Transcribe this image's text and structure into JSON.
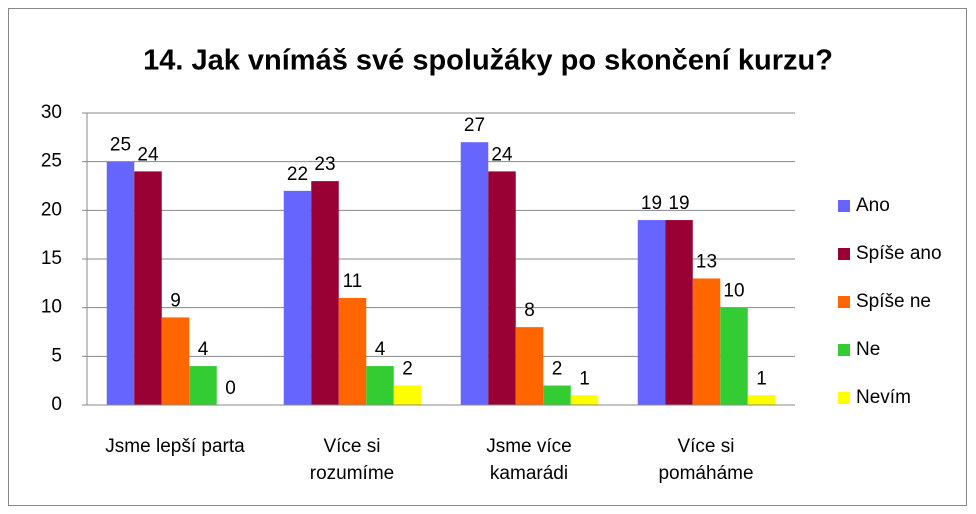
{
  "chart_data": {
    "type": "bar",
    "title": "14. Jak vnímáš své spolužáky po skončení kurzu?",
    "categories": [
      "Jsme lepší parta",
      "Více si\nrozumíme",
      "Jsme více\nkamarádi",
      "Více si\npomáháme"
    ],
    "series": [
      {
        "name": "Ano",
        "color": "#6666ff",
        "values": [
          25,
          22,
          27,
          19
        ]
      },
      {
        "name": "Spíše ano",
        "color": "#990033",
        "values": [
          24,
          23,
          24,
          19
        ]
      },
      {
        "name": "Spíše ne",
        "color": "#ff6600",
        "values": [
          9,
          11,
          8,
          13
        ]
      },
      {
        "name": "Ne",
        "color": "#33cc33",
        "values": [
          4,
          4,
          2,
          10
        ]
      },
      {
        "name": "Nevím",
        "color": "#ffff00",
        "values": [
          0,
          2,
          1,
          1
        ]
      }
    ],
    "ylim": [
      0,
      30
    ],
    "yticks": [
      0,
      5,
      10,
      15,
      20,
      25,
      30
    ],
    "grid": true,
    "legend": "right"
  }
}
